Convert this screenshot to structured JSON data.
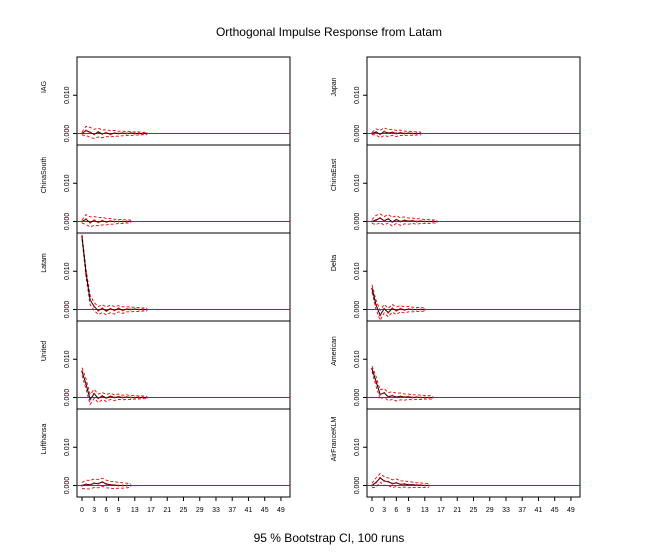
{
  "chart_data": {
    "type": "line",
    "title": "Orthogonal Impulse Response from Latam",
    "footer": "95 % Bootstrap CI,  100 runs",
    "xlim": [
      0,
      50
    ],
    "ylim": [
      -0.003,
      0.02
    ],
    "x_ticks": [
      0,
      3,
      6,
      9,
      13,
      17,
      21,
      25,
      29,
      33,
      37,
      41,
      45,
      49
    ],
    "x_tick_labels": [
      "0",
      "3",
      "6",
      "9",
      "13",
      "17",
      "21",
      "25",
      "29",
      "33",
      "37",
      "41",
      "45",
      "49"
    ],
    "y_ticks": [
      0.0,
      0.01
    ],
    "y_tick_labels": [
      "0.000",
      "0.010"
    ],
    "zero_line_color": "#e8000b",
    "irf_color": "#000000",
    "ci_color": "#e8000b",
    "columns": [
      [
        {
          "name": "IAG",
          "irf": [
            0.0,
            0.0008,
            0.0003,
            -0.0002,
            0.0004,
            -0.0001,
            0.0002,
            -0.0002,
            0.0001,
            0.0,
            0.0001,
            0.0,
            0.0001,
            0.0,
            0.0,
            0.0,
            0.0
          ],
          "upper": [
            0.0004,
            0.0019,
            0.0016,
            0.0011,
            0.0014,
            0.0009,
            0.001,
            0.0007,
            0.0008,
            0.0006,
            0.0006,
            0.0005,
            0.0005,
            0.0004,
            0.0004,
            0.0003,
            0.0003
          ],
          "lower": [
            -0.0004,
            -0.0005,
            -0.001,
            -0.0013,
            -0.0009,
            -0.0011,
            -0.0008,
            -0.0009,
            -0.0007,
            -0.0007,
            -0.0006,
            -0.0005,
            -0.0005,
            -0.0004,
            -0.0004,
            -0.0003,
            -0.0003
          ]
        },
        {
          "name": "ChinaSouth",
          "irf": [
            0.0,
            0.0006,
            -0.0003,
            0.0003,
            -0.0002,
            0.0002,
            -0.0001,
            0.0001,
            0.0,
            0.0,
            0.0,
            0.0,
            0.0
          ],
          "upper": [
            0.0004,
            0.0018,
            0.0012,
            0.0013,
            0.001,
            0.0011,
            0.0008,
            0.0008,
            0.0006,
            0.0005,
            0.0005,
            0.0004,
            0.0004
          ],
          "lower": [
            -0.0004,
            -0.0008,
            -0.0014,
            -0.001,
            -0.0011,
            -0.0009,
            -0.0009,
            -0.0007,
            -0.0007,
            -0.0005,
            -0.0005,
            -0.0004,
            -0.0004
          ]
        },
        {
          "name": "Latam",
          "irf": [
            0.019,
            0.0095,
            0.0025,
            0.0008,
            -0.0003,
            0.0003,
            -0.0004,
            0.0002,
            -0.0002,
            0.0003,
            -0.0002,
            0.0001,
            0.0,
            0.0001,
            0.0,
            0.0,
            0.0
          ],
          "upper": [
            0.0196,
            0.0105,
            0.0037,
            0.0018,
            0.0008,
            0.0012,
            0.0007,
            0.0011,
            0.0008,
            0.001,
            0.0007,
            0.0007,
            0.0006,
            0.0006,
            0.0005,
            0.0004,
            0.0004
          ],
          "lower": [
            0.0184,
            0.0085,
            0.0013,
            -0.0003,
            -0.0013,
            -0.0008,
            -0.0014,
            -0.0008,
            -0.0012,
            -0.0006,
            -0.001,
            -0.0006,
            -0.0006,
            -0.0005,
            -0.0005,
            -0.0004,
            -0.0004
          ]
        },
        {
          "name": "United",
          "irf": [
            0.0068,
            0.0035,
            -0.0005,
            0.001,
            -0.0002,
            0.0004,
            -0.0001,
            0.0003,
            0.0,
            0.0002,
            0.0,
            0.0001,
            0.0,
            0.0,
            0.0,
            0.0,
            0.0
          ],
          "upper": [
            0.0078,
            0.0048,
            0.0008,
            0.0021,
            0.0009,
            0.0013,
            0.0008,
            0.0011,
            0.0007,
            0.0009,
            0.0006,
            0.0007,
            0.0005,
            0.0005,
            0.0004,
            0.0004,
            0.0003
          ],
          "lower": [
            0.0058,
            0.0022,
            -0.0018,
            -0.0002,
            -0.0013,
            -0.0006,
            -0.001,
            -0.0005,
            -0.0008,
            -0.0005,
            -0.0006,
            -0.0005,
            -0.0005,
            -0.0004,
            -0.0004,
            -0.0003,
            -0.0003
          ]
        },
        {
          "name": "Lufthansa",
          "irf": [
            0.0,
            0.0003,
            0.0002,
            0.0006,
            0.0005,
            0.0009,
            0.0004,
            0.0002,
            0.0001,
            0.0,
            0.0,
            0.0,
            0.0
          ],
          "upper": [
            0.0008,
            0.0014,
            0.0013,
            0.0017,
            0.0016,
            0.0019,
            0.0014,
            0.0011,
            0.001,
            0.0008,
            0.0007,
            0.0006,
            0.0005
          ],
          "lower": [
            -0.0008,
            -0.0009,
            -0.0009,
            -0.0005,
            -0.0006,
            -0.0002,
            -0.0006,
            -0.0007,
            -0.0008,
            -0.0007,
            -0.0007,
            -0.0006,
            -0.0005
          ]
        }
      ],
      [
        {
          "name": "Japan",
          "irf": [
            0.0,
            0.0004,
            -0.0002,
            0.0005,
            0.0001,
            0.0003,
            0.0,
            0.0002,
            0.0,
            0.0001,
            0.0,
            0.0,
            0.0
          ],
          "upper": [
            0.0003,
            0.0012,
            0.0008,
            0.0015,
            0.001,
            0.0011,
            0.0008,
            0.0009,
            0.0006,
            0.0006,
            0.0005,
            0.0004,
            0.0004
          ],
          "lower": [
            -0.0003,
            -0.0004,
            -0.0011,
            -0.0005,
            -0.0008,
            -0.0005,
            -0.0008,
            -0.0005,
            -0.0006,
            -0.0004,
            -0.0005,
            -0.0004,
            -0.0004
          ]
        },
        {
          "name": "ChinaEast",
          "irf": [
            0.0,
            0.0004,
            0.0009,
            0.0002,
            0.0007,
            -0.0001,
            0.0005,
            0.0,
            0.0003,
            0.0001,
            0.0002,
            0.0,
            0.0001,
            0.0,
            0.0,
            0.0,
            0.0
          ],
          "upper": [
            0.0005,
            0.0016,
            0.002,
            0.0013,
            0.0018,
            0.0011,
            0.0015,
            0.001,
            0.0012,
            0.0009,
            0.0009,
            0.0007,
            0.0007,
            0.0005,
            0.0005,
            0.0004,
            0.0004
          ],
          "lower": [
            -0.0005,
            -0.0008,
            -0.0003,
            -0.0009,
            -0.0004,
            -0.0012,
            -0.0005,
            -0.001,
            -0.0006,
            -0.0007,
            -0.0005,
            -0.0007,
            -0.0005,
            -0.0005,
            -0.0005,
            -0.0004,
            -0.0004
          ]
        },
        {
          "name": "Delta",
          "irf": [
            0.0055,
            0.0012,
            -0.0015,
            0.0002,
            -0.0008,
            0.0003,
            -0.0003,
            0.0002,
            -0.0001,
            0.0001,
            0.0,
            0.0,
            0.0,
            0.0
          ],
          "upper": [
            0.0065,
            0.0024,
            -0.0002,
            0.0013,
            0.0003,
            0.0013,
            0.0007,
            0.001,
            0.0007,
            0.0008,
            0.0006,
            0.0005,
            0.0005,
            0.0004
          ],
          "lower": [
            0.0045,
            0.0,
            -0.0028,
            -0.0009,
            -0.0019,
            -0.0007,
            -0.0013,
            -0.0006,
            -0.0009,
            -0.0006,
            -0.0006,
            -0.0005,
            -0.0005,
            -0.0004
          ]
        },
        {
          "name": "American",
          "irf": [
            0.0075,
            0.0042,
            0.0008,
            0.0012,
            0.0002,
            0.0005,
            0.0001,
            0.0003,
            0.0001,
            0.0002,
            0.0,
            0.0001,
            0.0,
            0.0,
            0.0,
            0.0
          ],
          "upper": [
            0.0082,
            0.0055,
            0.002,
            0.0023,
            0.0013,
            0.0015,
            0.0011,
            0.0012,
            0.0009,
            0.0009,
            0.0007,
            0.0007,
            0.0006,
            0.0005,
            0.0005,
            0.0004
          ],
          "lower": [
            0.0068,
            0.0029,
            -0.0004,
            0.0001,
            -0.0008,
            -0.0005,
            -0.0009,
            -0.0006,
            -0.0007,
            -0.0005,
            -0.0006,
            -0.0005,
            -0.0005,
            -0.0004,
            -0.0004,
            -0.0004
          ]
        },
        {
          "name": "AirFranceKLM",
          "irf": [
            0.0,
            0.0008,
            0.002,
            0.0012,
            0.001,
            0.0005,
            0.0007,
            0.0003,
            0.0004,
            0.0002,
            0.0002,
            0.0001,
            0.0001,
            0.0,
            0.0
          ],
          "upper": [
            0.0006,
            0.002,
            0.0031,
            0.0023,
            0.002,
            0.0015,
            0.0017,
            0.0012,
            0.0012,
            0.001,
            0.0009,
            0.0007,
            0.0007,
            0.0005,
            0.0005
          ],
          "lower": [
            -0.0006,
            -0.0004,
            0.0009,
            0.0001,
            0.0,
            -0.0005,
            -0.0003,
            -0.0006,
            -0.0004,
            -0.0006,
            -0.0005,
            -0.0005,
            -0.0005,
            -0.0005,
            -0.0005
          ]
        }
      ]
    ]
  }
}
